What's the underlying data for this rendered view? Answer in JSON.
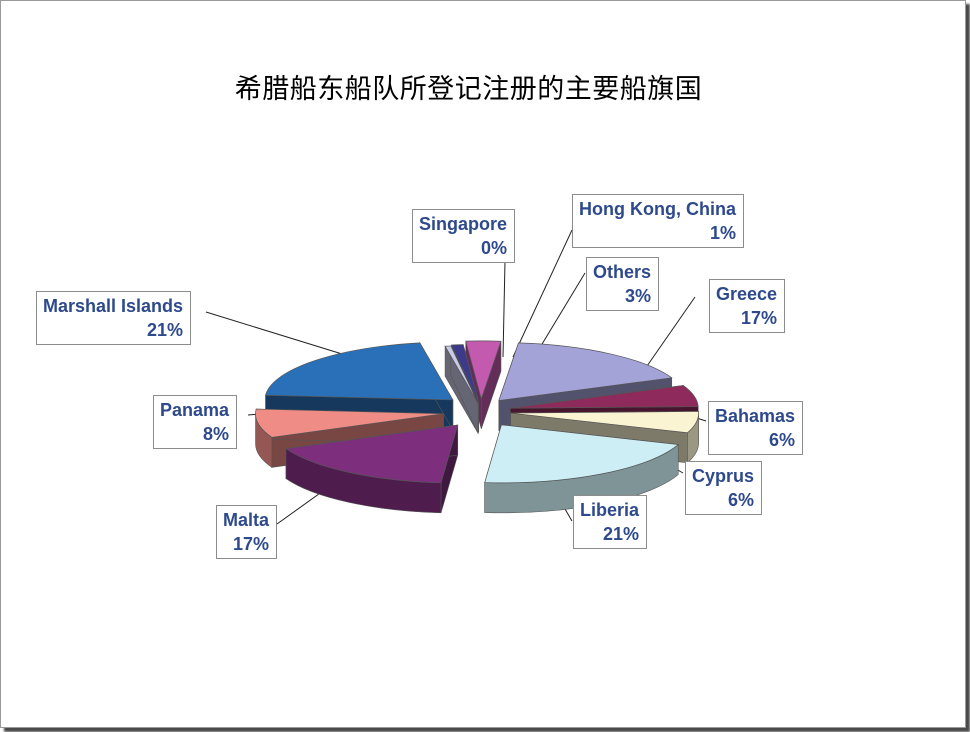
{
  "chart_data": {
    "type": "pie",
    "title": "希腊船东船队所登记注册的主要船旗国",
    "slices": [
      {
        "label": "Greece",
        "pct": "17%",
        "value": 17,
        "color": "#a3a3d8"
      },
      {
        "label": "Bahamas",
        "pct": "6%",
        "value": 6,
        "color": "#8e2a5c"
      },
      {
        "label": "Cyprus",
        "pct": "6%",
        "value": 6,
        "color": "#fbf4d2"
      },
      {
        "label": "Liberia",
        "pct": "21%",
        "value": 21,
        "color": "#cdeef4"
      },
      {
        "label": "Malta",
        "pct": "17%",
        "value": 17,
        "color": "#7d2f7d"
      },
      {
        "label": "Panama",
        "pct": "8%",
        "value": 8,
        "color": "#f08c86"
      },
      {
        "label": "Marshall Islands",
        "pct": "21%",
        "value": 21,
        "color": "#2a70b8"
      },
      {
        "label": "Singapore",
        "pct": "0%",
        "value": 0.5,
        "color": "#c9cae8"
      },
      {
        "label": "Hong Kong, China",
        "pct": "1%",
        "value": 1,
        "color": "#3c3a8a"
      },
      {
        "label": "Others",
        "pct": "3%",
        "value": 3,
        "color": "#c35ab0"
      }
    ]
  }
}
